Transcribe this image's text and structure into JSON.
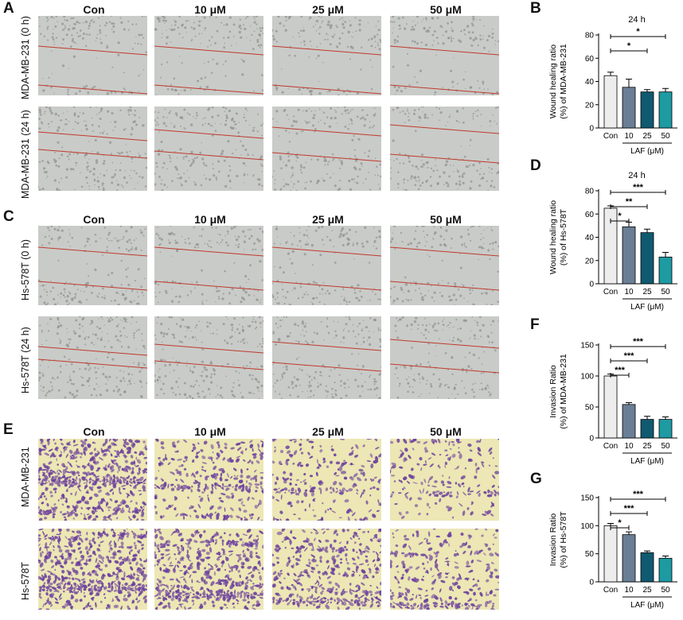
{
  "panels": {
    "A": "A",
    "B": "B",
    "C": "C",
    "D": "D",
    "E": "E",
    "F": "F",
    "G": "G"
  },
  "conditions": [
    "Con",
    "10 μM",
    "25 μM",
    "50 μM"
  ],
  "row_labels": {
    "mda_0h": "MDA-MB-231 (0 h)",
    "mda_24h": "MDA-MB-231 (24 h)",
    "hs_0h": "Hs-578T (0 h)",
    "hs_24h": "Hs-578T (24 h)",
    "e_mda": "MDA-MB-231",
    "e_hs": "Hs-578T"
  },
  "colors": {
    "scratch_bg": "#c9cbc8",
    "scratch_line": "#c0392b",
    "stain_bg": "#ece7b4",
    "stain_cell": "#6b3f9e",
    "bar_con": "#ededed",
    "bar_10": "#6a7f96",
    "bar_25": "#0f5a70",
    "bar_50": "#1d9aa2"
  },
  "chart_data": [
    {
      "panel": "B",
      "type": "bar",
      "title": "24 h",
      "ylabel": [
        "Wound healing ratio",
        "(%) of MDA-MB-231"
      ],
      "categories": [
        "Con",
        "10",
        "25",
        "50"
      ],
      "group_label": "LAF (μM)",
      "values": [
        45,
        35,
        31,
        31
      ],
      "errors": [
        3,
        7,
        2,
        3
      ],
      "ylim": [
        0,
        80
      ],
      "yticks": [
        0,
        20,
        40,
        60,
        80
      ],
      "significance": [
        {
          "from": 0,
          "to": 2,
          "label": "*"
        },
        {
          "from": 0,
          "to": 3,
          "label": "*"
        }
      ]
    },
    {
      "panel": "D",
      "type": "bar",
      "title": "24 h",
      "ylabel": [
        "Wound healing ratio",
        "(%) of Hs-578T"
      ],
      "categories": [
        "Con",
        "10",
        "25",
        "50"
      ],
      "group_label": "LAF (μM)",
      "values": [
        65,
        49,
        44,
        23
      ],
      "errors": [
        2,
        4,
        3,
        4
      ],
      "ylim": [
        0,
        80
      ],
      "yticks": [
        0,
        20,
        40,
        60,
        80
      ],
      "significance": [
        {
          "from": 0,
          "to": 1,
          "label": "*"
        },
        {
          "from": 0,
          "to": 2,
          "label": "**"
        },
        {
          "from": 0,
          "to": 3,
          "label": "***"
        }
      ]
    },
    {
      "panel": "F",
      "type": "bar",
      "title": "",
      "ylabel": [
        "Invasion Ratio",
        "(%) of MDA-MB-231"
      ],
      "categories": [
        "Con",
        "10",
        "25",
        "50"
      ],
      "group_label": "LAF (μM)",
      "values": [
        100,
        54,
        30,
        30
      ],
      "errors": [
        3,
        3,
        5,
        4
      ],
      "ylim": [
        0,
        150
      ],
      "yticks": [
        0,
        50,
        100,
        150
      ],
      "significance": [
        {
          "from": 0,
          "to": 1,
          "label": "***"
        },
        {
          "from": 0,
          "to": 2,
          "label": "***"
        },
        {
          "from": 0,
          "to": 3,
          "label": "***"
        }
      ]
    },
    {
      "panel": "G",
      "type": "bar",
      "title": "",
      "ylabel": [
        "Invasion Ratio",
        "(%) of Hs-578T"
      ],
      "categories": [
        "Con",
        "10",
        "25",
        "50"
      ],
      "group_label": "LAF (μM)",
      "values": [
        100,
        84,
        52,
        42
      ],
      "errors": [
        4,
        5,
        3,
        4
      ],
      "ylim": [
        0,
        150
      ],
      "yticks": [
        0,
        50,
        100,
        150
      ],
      "significance": [
        {
          "from": 0,
          "to": 1,
          "label": "*"
        },
        {
          "from": 0,
          "to": 2,
          "label": "***"
        },
        {
          "from": 0,
          "to": 3,
          "label": "***"
        }
      ]
    }
  ]
}
